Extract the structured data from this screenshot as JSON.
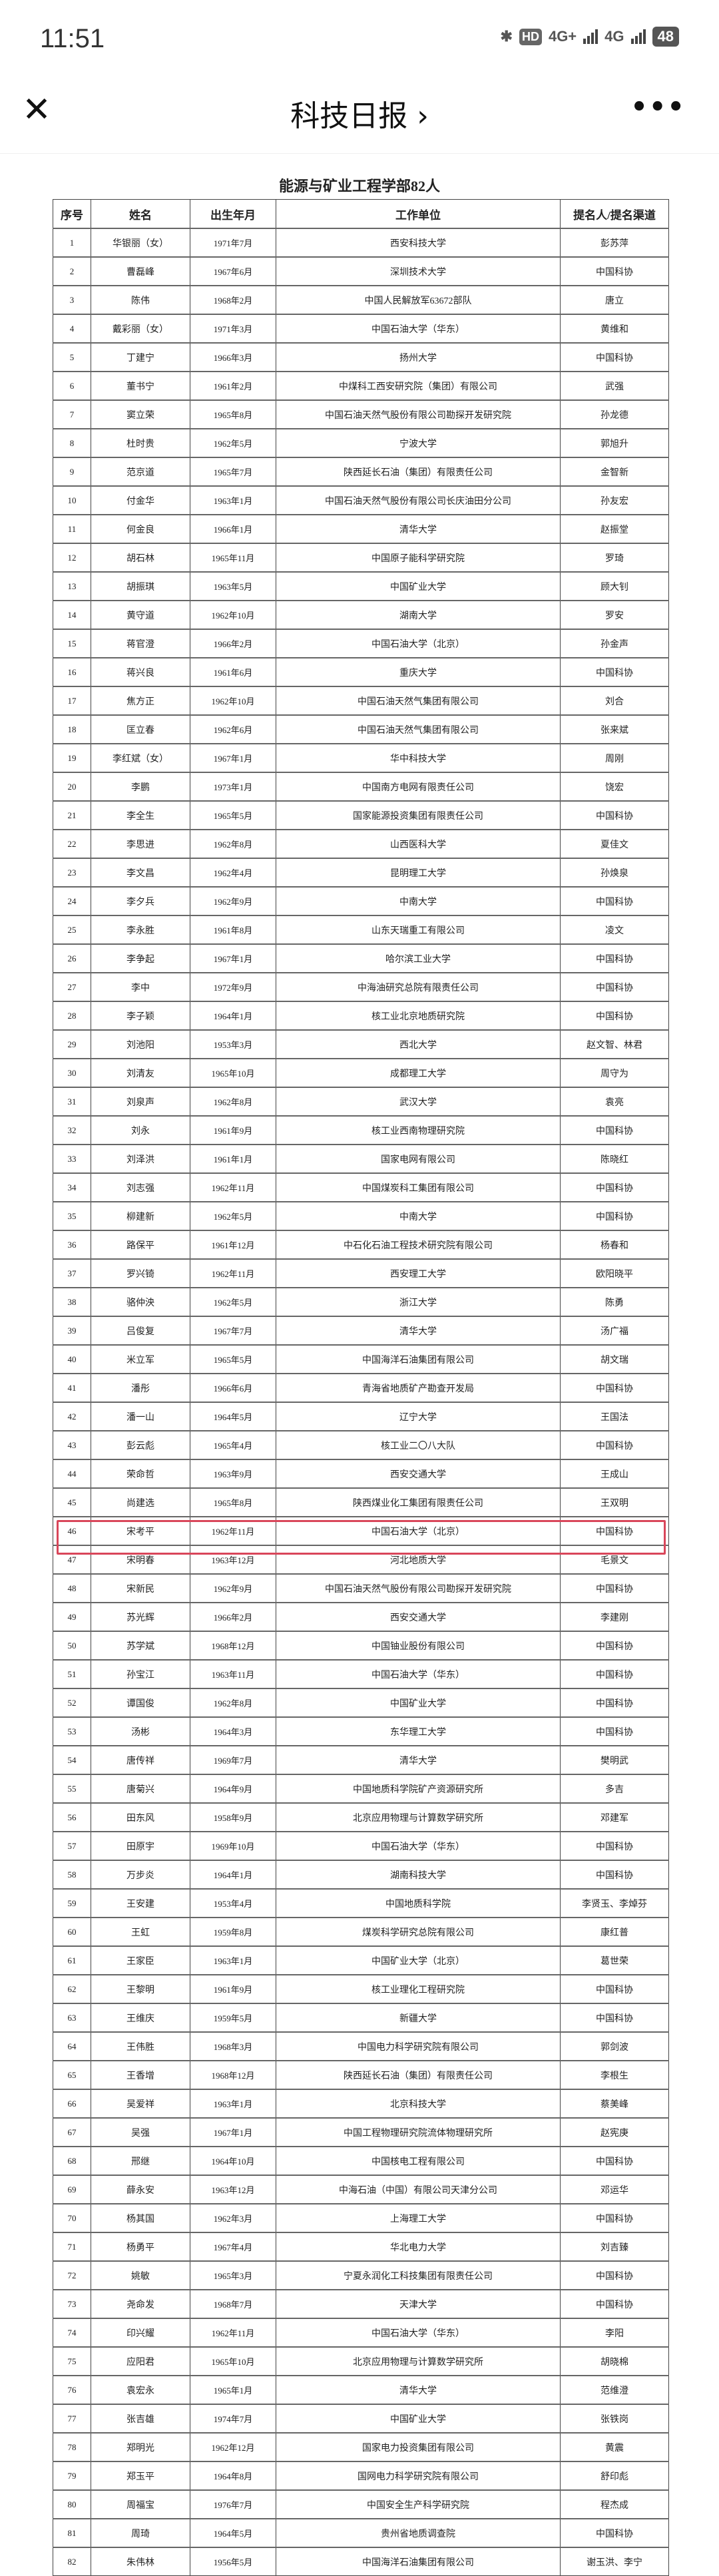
{
  "status_bar": {
    "time": "11:51",
    "hd": "HD",
    "network1": "4G+",
    "network2": "4G",
    "battery": "48"
  },
  "nav": {
    "title": "科技日报 ›",
    "close_icon": "close-icon",
    "more_icon": "more-icon"
  },
  "document": {
    "title": "能源与矿业工程学部82人",
    "headers": [
      "序号",
      "姓名",
      "出生年月",
      "工作单位",
      "提名人/提名渠道"
    ],
    "highlight_color": "#d9465a",
    "highlighted_row": "47",
    "rows": [
      [
        "1",
        "华银丽（女）",
        "1971年7月",
        "西安科技大学",
        "彭苏萍"
      ],
      [
        "2",
        "曹磊峰",
        "1967年6月",
        "深圳技术大学",
        "中国科协"
      ],
      [
        "3",
        "陈伟",
        "1968年2月",
        "中国人民解放军63672部队",
        "唐立"
      ],
      [
        "4",
        "戴彩丽（女）",
        "1971年3月",
        "中国石油大学（华东）",
        "黄维和"
      ],
      [
        "5",
        "丁建宁",
        "1966年3月",
        "扬州大学",
        "中国科协"
      ],
      [
        "6",
        "董书宁",
        "1961年2月",
        "中煤科工西安研究院（集团）有限公司",
        "武强"
      ],
      [
        "7",
        "窦立荣",
        "1965年8月",
        "中国石油天然气股份有限公司勘探开发研究院",
        "孙龙德"
      ],
      [
        "8",
        "杜时贵",
        "1962年5月",
        "宁波大学",
        "郭旭升"
      ],
      [
        "9",
        "范京道",
        "1965年7月",
        "陕西延长石油（集团）有限责任公司",
        "金智新"
      ],
      [
        "10",
        "付金华",
        "1963年1月",
        "中国石油天然气股份有限公司长庆油田分公司",
        "孙友宏"
      ],
      [
        "11",
        "何金良",
        "1966年1月",
        "清华大学",
        "赵振堂"
      ],
      [
        "12",
        "胡石林",
        "1965年11月",
        "中国原子能科学研究院",
        "罗琦"
      ],
      [
        "13",
        "胡振琪",
        "1963年5月",
        "中国矿业大学",
        "顾大钊"
      ],
      [
        "14",
        "黄守道",
        "1962年10月",
        "湖南大学",
        "罗安"
      ],
      [
        "15",
        "蒋官澄",
        "1966年2月",
        "中国石油大学（北京）",
        "孙金声"
      ],
      [
        "16",
        "蒋兴良",
        "1961年6月",
        "重庆大学",
        "中国科协"
      ],
      [
        "17",
        "焦方正",
        "1962年10月",
        "中国石油天然气集团有限公司",
        "刘合"
      ],
      [
        "18",
        "匡立春",
        "1962年6月",
        "中国石油天然气集团有限公司",
        "张来斌"
      ],
      [
        "19",
        "李红斌（女）",
        "1967年1月",
        "华中科技大学",
        "周刚"
      ],
      [
        "20",
        "李鹏",
        "1973年1月",
        "中国南方电网有限责任公司",
        "饶宏"
      ],
      [
        "21",
        "李全生",
        "1965年5月",
        "国家能源投资集团有限责任公司",
        "中国科协"
      ],
      [
        "22",
        "李思进",
        "1962年8月",
        "山西医科大学",
        "夏佳文"
      ],
      [
        "23",
        "李文昌",
        "1962年4月",
        "昆明理工大学",
        "孙焕泉"
      ],
      [
        "24",
        "李夕兵",
        "1962年9月",
        "中南大学",
        "中国科协"
      ],
      [
        "25",
        "李永胜",
        "1961年8月",
        "山东天瑞重工有限公司",
        "凌文"
      ],
      [
        "26",
        "李争起",
        "1967年1月",
        "哈尔滨工业大学",
        "中国科协"
      ],
      [
        "27",
        "李中",
        "1972年9月",
        "中海油研究总院有限责任公司",
        "中国科协"
      ],
      [
        "28",
        "李子颖",
        "1964年1月",
        "核工业北京地质研究院",
        "中国科协"
      ],
      [
        "29",
        "刘池阳",
        "1953年3月",
        "西北大学",
        "赵文智、林君"
      ],
      [
        "30",
        "刘清友",
        "1965年10月",
        "成都理工大学",
        "周守为"
      ],
      [
        "31",
        "刘泉声",
        "1962年8月",
        "武汉大学",
        "袁亮"
      ],
      [
        "32",
        "刘永",
        "1961年9月",
        "核工业西南物理研究院",
        "中国科协"
      ],
      [
        "33",
        "刘泽洪",
        "1961年1月",
        "国家电网有限公司",
        "陈晓红"
      ],
      [
        "34",
        "刘志强",
        "1962年11月",
        "中国煤炭科工集团有限公司",
        "中国科协"
      ],
      [
        "35",
        "柳建新",
        "1962年5月",
        "中南大学",
        "中国科协"
      ],
      [
        "36",
        "路保平",
        "1961年12月",
        "中石化石油工程技术研究院有限公司",
        "杨春和"
      ],
      [
        "37",
        "罗兴锜",
        "1962年11月",
        "西安理工大学",
        "欧阳晓平"
      ],
      [
        "38",
        "骆仲泱",
        "1962年5月",
        "浙江大学",
        "陈勇"
      ],
      [
        "39",
        "吕俊复",
        "1967年7月",
        "清华大学",
        "汤广福"
      ],
      [
        "40",
        "米立军",
        "1965年5月",
        "中国海洋石油集团有限公司",
        "胡文瑞"
      ],
      [
        "41",
        "潘彤",
        "1966年6月",
        "青海省地质矿产勘查开发局",
        "中国科协"
      ],
      [
        "42",
        "潘一山",
        "1964年5月",
        "辽宁大学",
        "王国法"
      ],
      [
        "43",
        "彭云彪",
        "1965年4月",
        "核工业二〇八大队",
        "中国科协"
      ],
      [
        "44",
        "荣命哲",
        "1963年9月",
        "西安交通大学",
        "王成山"
      ],
      [
        "45",
        "尚建选",
        "1965年8月",
        "陕西煤业化工集团有限责任公司",
        "王双明"
      ],
      [
        "46",
        "宋考平",
        "1962年11月",
        "中国石油大学（北京）",
        "中国科协"
      ],
      [
        "47",
        "宋明春",
        "1963年12月",
        "河北地质大学",
        "毛景文"
      ],
      [
        "48",
        "宋新民",
        "1962年9月",
        "中国石油天然气股份有限公司勘探开发研究院",
        "中国科协"
      ],
      [
        "49",
        "苏光辉",
        "1966年2月",
        "西安交通大学",
        "李建刚"
      ],
      [
        "50",
        "苏学斌",
        "1968年12月",
        "中国铀业股份有限公司",
        "中国科协"
      ],
      [
        "51",
        "孙宝江",
        "1963年11月",
        "中国石油大学（华东）",
        "中国科协"
      ],
      [
        "52",
        "谭国俊",
        "1962年8月",
        "中国矿业大学",
        "中国科协"
      ],
      [
        "53",
        "汤彬",
        "1964年3月",
        "东华理工大学",
        "中国科协"
      ],
      [
        "54",
        "唐传祥",
        "1969年7月",
        "清华大学",
        "樊明武"
      ],
      [
        "55",
        "唐菊兴",
        "1964年9月",
        "中国地质科学院矿产资源研究所",
        "多吉"
      ],
      [
        "56",
        "田东风",
        "1958年9月",
        "北京应用物理与计算数学研究所",
        "邓建军"
      ],
      [
        "57",
        "田原宇",
        "1969年10月",
        "中国石油大学（华东）",
        "中国科协"
      ],
      [
        "58",
        "万步炎",
        "1964年1月",
        "湖南科技大学",
        "中国科协"
      ],
      [
        "59",
        "王安建",
        "1953年4月",
        "中国地质科学院",
        "李贤玉、李焯芬"
      ],
      [
        "60",
        "王虹",
        "1959年8月",
        "煤炭科学研究总院有限公司",
        "康红普"
      ],
      [
        "61",
        "王家臣",
        "1963年1月",
        "中国矿业大学（北京）",
        "葛世荣"
      ],
      [
        "62",
        "王黎明",
        "1961年9月",
        "核工业理化工程研究院",
        "中国科协"
      ],
      [
        "63",
        "王维庆",
        "1959年5月",
        "新疆大学",
        "中国科协"
      ],
      [
        "64",
        "王伟胜",
        "1968年3月",
        "中国电力科学研究院有限公司",
        "郭剑波"
      ],
      [
        "65",
        "王香增",
        "1968年12月",
        "陕西延长石油（集团）有限责任公司",
        "李根生"
      ],
      [
        "66",
        "吴爱祥",
        "1963年1月",
        "北京科技大学",
        "蔡美峰"
      ],
      [
        "67",
        "吴强",
        "1967年1月",
        "中国工程物理研究院流体物理研究所",
        "赵宪庚"
      ],
      [
        "68",
        "邢继",
        "1964年10月",
        "中国核电工程有限公司",
        "中国科协"
      ],
      [
        "69",
        "薛永安",
        "1963年12月",
        "中海石油（中国）有限公司天津分公司",
        "邓运华"
      ],
      [
        "70",
        "杨其国",
        "1962年3月",
        "上海理工大学",
        "中国科协"
      ],
      [
        "71",
        "杨勇平",
        "1967年4月",
        "华北电力大学",
        "刘吉臻"
      ],
      [
        "72",
        "姚敏",
        "1965年3月",
        "宁夏永润化工科技集团有限责任公司",
        "中国科协"
      ],
      [
        "73",
        "尧命发",
        "1968年7月",
        "天津大学",
        "中国科协"
      ],
      [
        "74",
        "印兴耀",
        "1962年11月",
        "中国石油大学（华东）",
        "李阳"
      ],
      [
        "75",
        "应阳君",
        "1965年10月",
        "北京应用物理与计算数学研究所",
        "胡晓棉"
      ],
      [
        "76",
        "袁宏永",
        "1965年1月",
        "清华大学",
        "范维澄"
      ],
      [
        "77",
        "张吉雄",
        "1974年7月",
        "中国矿业大学",
        "张铁岗"
      ],
      [
        "78",
        "郑明光",
        "1962年12月",
        "国家电力投资集团有限公司",
        "黄震"
      ],
      [
        "79",
        "郑玉平",
        "1964年8月",
        "国网电力科学研究院有限公司",
        "舒印彪"
      ],
      [
        "80",
        "周福宝",
        "1976年7月",
        "中国安全生产科学研究院",
        "程杰成"
      ],
      [
        "81",
        "周琦",
        "1964年5月",
        "贵州省地质调查院",
        "中国科协"
      ],
      [
        "82",
        "朱伟林",
        "1956年5月",
        "中国海洋石油集团有限公司",
        "谢玉洪、李宁"
      ]
    ]
  }
}
